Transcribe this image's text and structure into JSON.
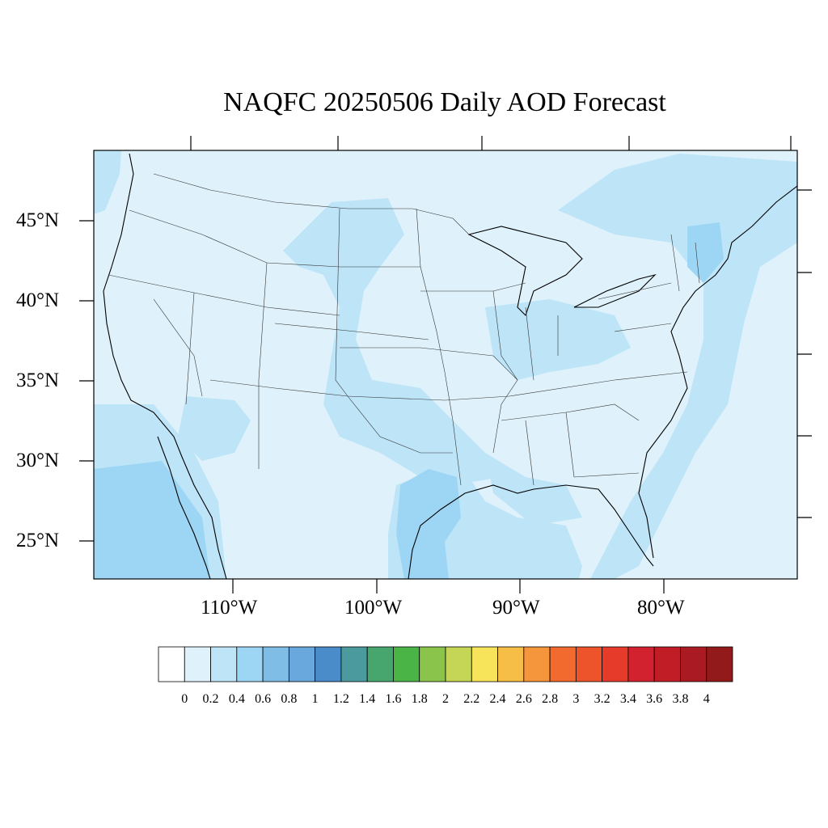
{
  "title": "NAQFC 20250506 Daily AOD Forecast",
  "map": {
    "lat_labels": [
      "45°N",
      "40°N",
      "35°N",
      "30°N",
      "25°N"
    ],
    "lon_labels": [
      "110°W",
      "100°W",
      "90°W",
      "80°W"
    ],
    "background_color": "#dff2fb"
  },
  "legend": {
    "ticks": [
      "0",
      "0.2",
      "0.4",
      "0.6",
      "0.8",
      "1",
      "1.2",
      "1.4",
      "1.6",
      "1.8",
      "2",
      "2.2",
      "2.4",
      "2.6",
      "2.8",
      "3",
      "3.2",
      "3.4",
      "3.6",
      "3.8",
      "4"
    ],
    "colors": [
      "#ffffff",
      "#dff2fb",
      "#bde4f7",
      "#9dd6f4",
      "#7fbde6",
      "#69a8dc",
      "#4a8bc9",
      "#4a9a9e",
      "#47a56e",
      "#4bb447",
      "#8bc44b",
      "#c5d656",
      "#f7e45a",
      "#f6bd47",
      "#f5963d",
      "#f26a2d",
      "#ee542c",
      "#e63a2a",
      "#d22230",
      "#c01d27",
      "#aa1a23",
      "#931a1b"
    ]
  }
}
